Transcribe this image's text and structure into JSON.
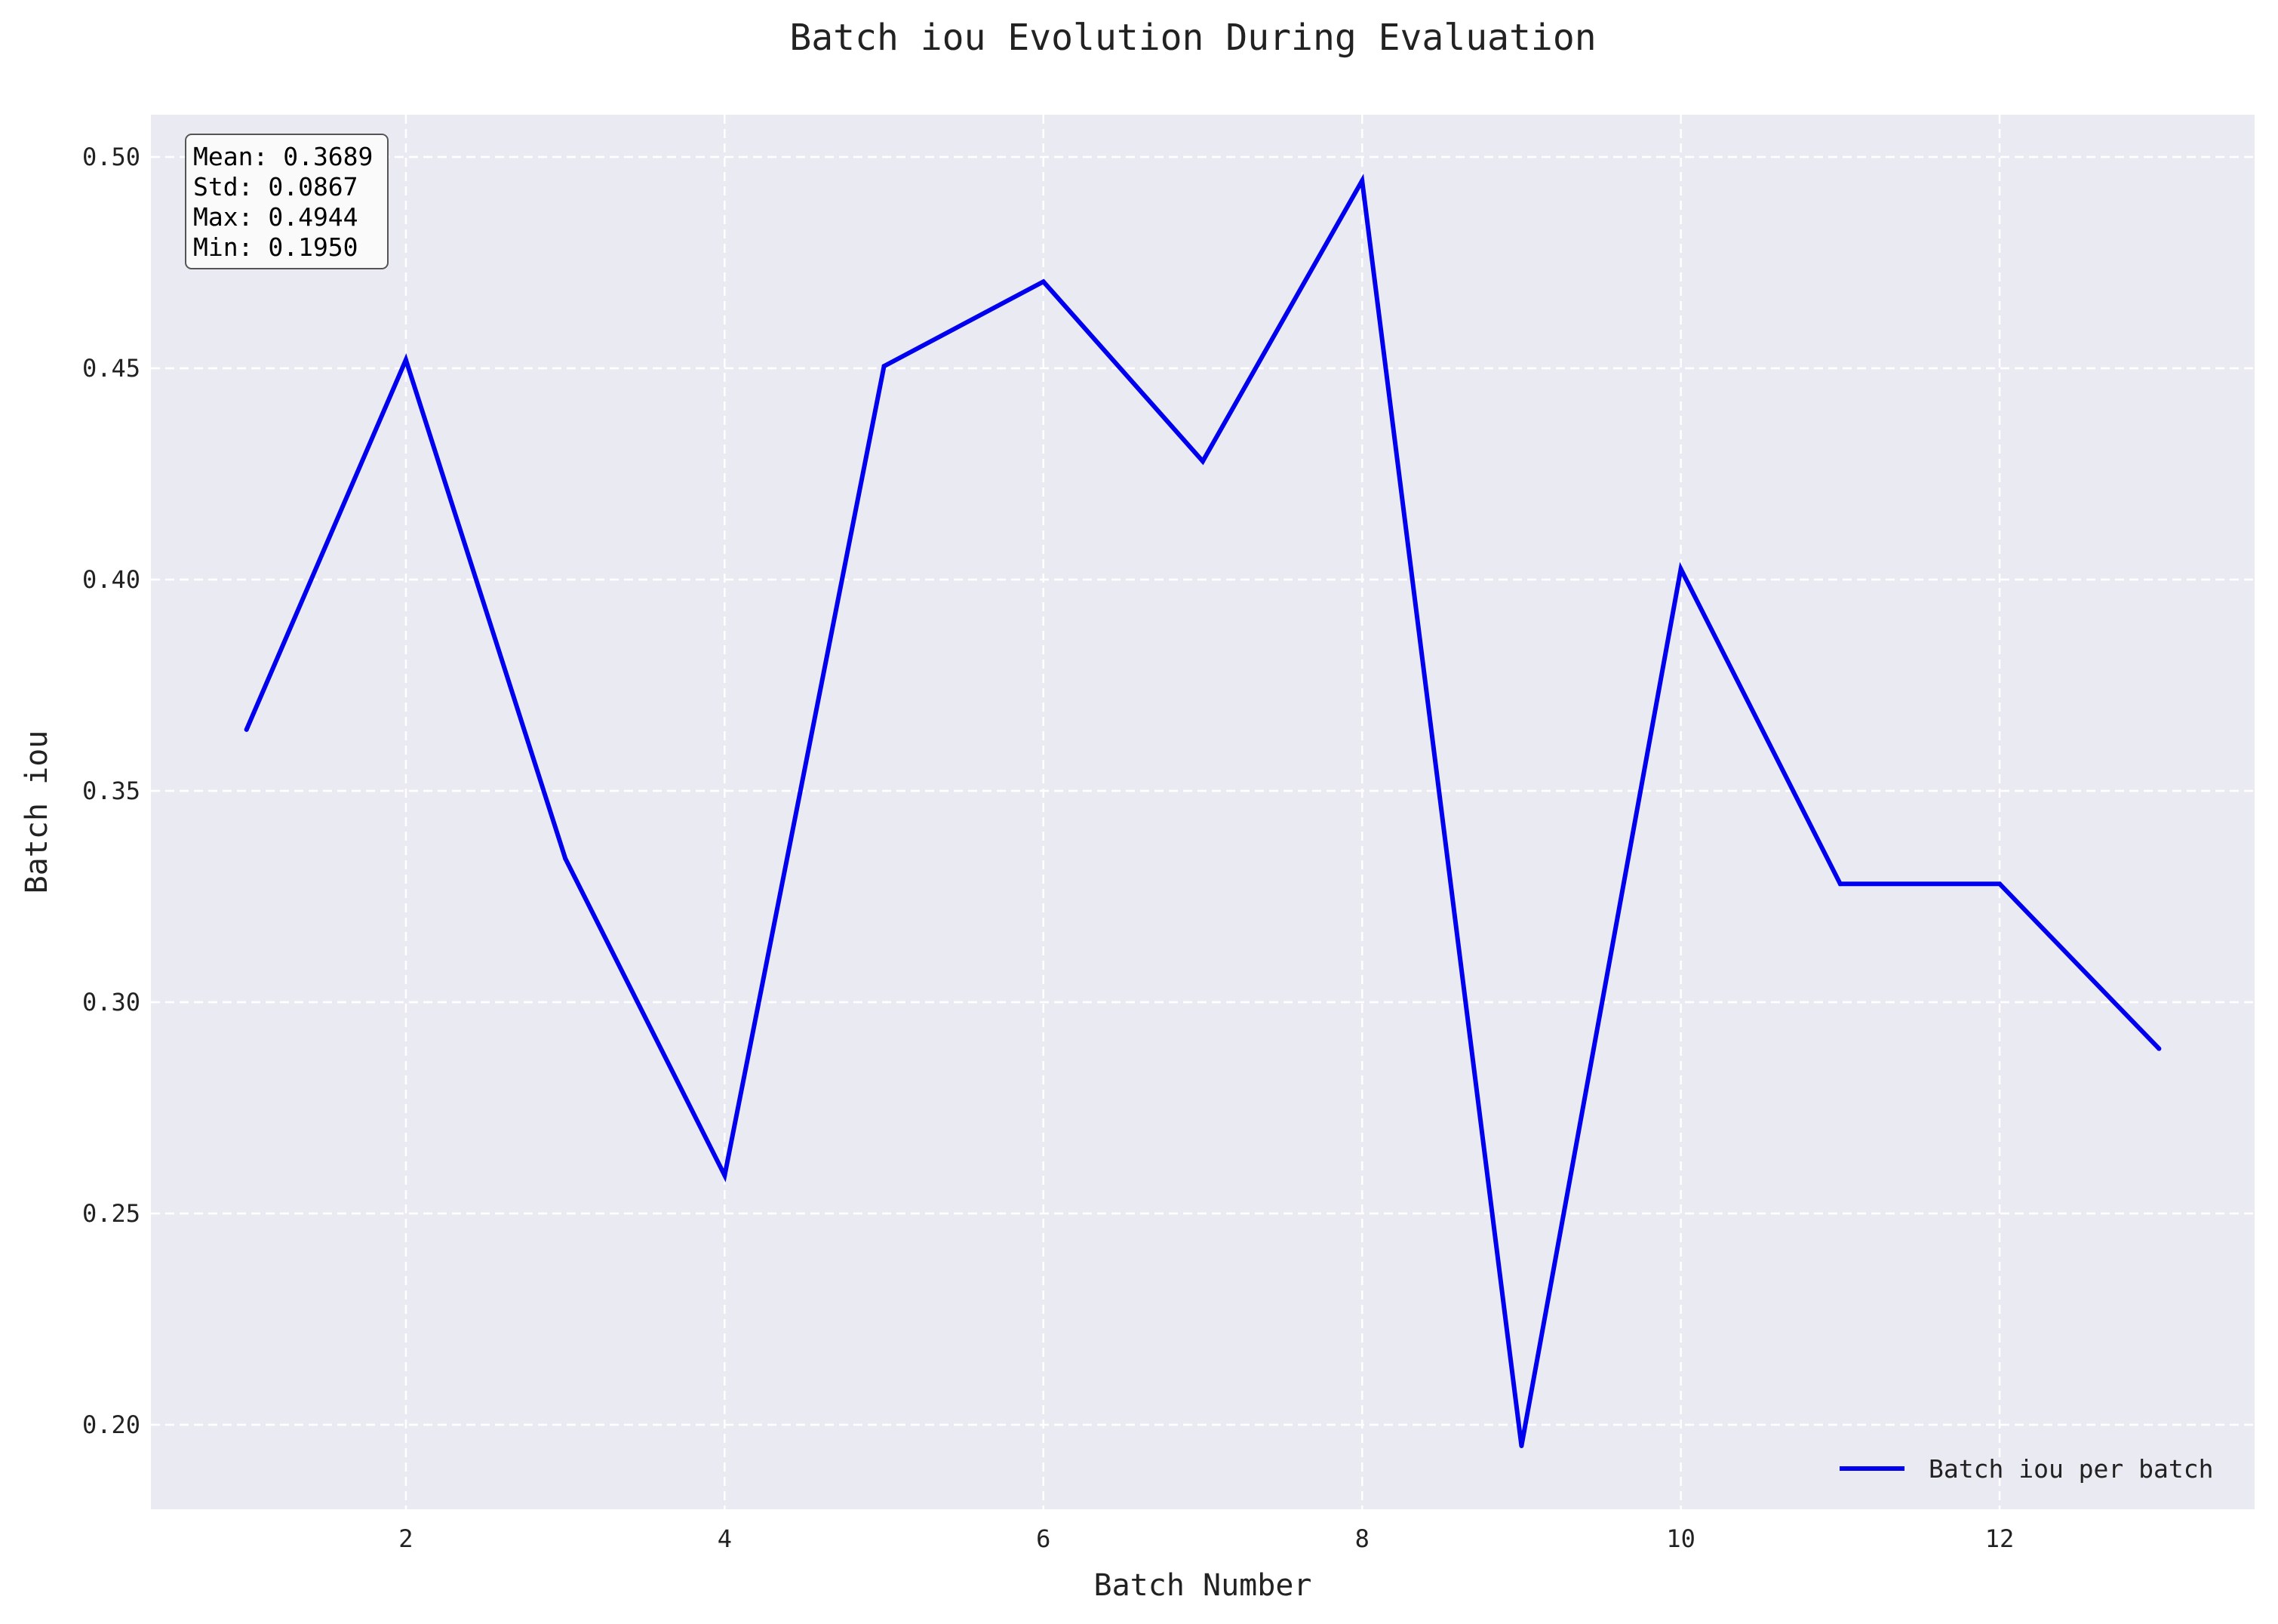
{
  "chart_data": {
    "type": "line",
    "title": "Batch iou Evolution During Evaluation",
    "xlabel": "Batch Number",
    "ylabel": "Batch iou",
    "xlim": [
      0.4,
      13.6
    ],
    "ylim": [
      0.18,
      0.51
    ],
    "xticks": [
      2,
      4,
      6,
      8,
      10,
      12
    ],
    "xtick_labels": [
      "2",
      "4",
      "6",
      "8",
      "10",
      "12"
    ],
    "yticks": [
      0.2,
      0.25,
      0.3,
      0.35,
      0.4,
      0.45,
      0.5
    ],
    "ytick_labels": [
      "0.20",
      "0.25",
      "0.30",
      "0.35",
      "0.40",
      "0.45",
      "0.50"
    ],
    "grid": true,
    "legend_position": "bottom-right",
    "series": [
      {
        "name": "Batch iou per batch",
        "color": "#0000ee",
        "x": [
          1,
          2,
          3,
          4,
          5,
          6,
          7,
          8,
          9,
          10,
          11,
          12,
          13
        ],
        "values": [
          0.3645,
          0.452,
          0.334,
          0.259,
          0.4505,
          0.4705,
          0.428,
          0.4944,
          0.195,
          0.4025,
          0.328,
          0.328,
          0.289
        ]
      }
    ],
    "stats": [
      "Mean: 0.3689",
      "Std: 0.0867",
      "Max: 0.4944",
      "Min: 0.1950"
    ]
  },
  "colors": {
    "plot_background": "#eaeaf2",
    "grid": "#ffffff",
    "line": "#0000ee"
  }
}
